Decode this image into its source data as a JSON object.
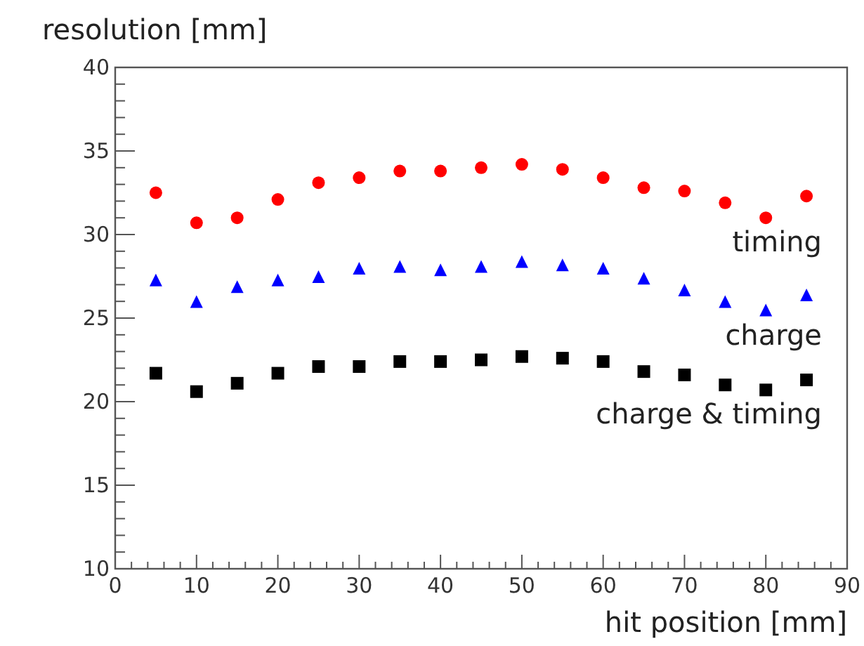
{
  "chart_data": {
    "type": "scatter",
    "xlabel": "hit position [mm]",
    "ylabel": "resolution [mm]",
    "x": [
      5,
      10,
      15,
      20,
      25,
      30,
      35,
      40,
      45,
      50,
      55,
      60,
      65,
      70,
      75,
      80,
      85
    ],
    "series": [
      {
        "name": "timing",
        "color": "#ff0000",
        "marker": "circle",
        "values": [
          32.5,
          30.7,
          31.0,
          32.1,
          33.1,
          33.4,
          33.8,
          33.8,
          34.0,
          34.2,
          33.9,
          33.4,
          32.8,
          32.6,
          31.9,
          31.0,
          32.3
        ]
      },
      {
        "name": "charge",
        "color": "#0000ff",
        "marker": "triangle",
        "values": [
          27.2,
          25.9,
          26.8,
          27.2,
          27.4,
          27.9,
          28.0,
          27.8,
          28.0,
          28.3,
          28.1,
          27.9,
          27.3,
          26.6,
          25.9,
          25.4,
          26.3
        ]
      },
      {
        "name": "charge & timing",
        "color": "#000000",
        "marker": "square",
        "values": [
          21.7,
          20.6,
          21.1,
          21.7,
          22.1,
          22.1,
          22.4,
          22.4,
          22.5,
          22.7,
          22.6,
          22.4,
          21.8,
          21.6,
          21.0,
          20.7,
          21.3
        ]
      }
    ],
    "xlim": [
      0,
      90
    ],
    "ylim": [
      10,
      40
    ],
    "xticks": [
      0,
      {
        "value": 2,
        "label": null
      },
      {
        "value": 4,
        "label": null
      },
      {
        "value": 6,
        "label": null
      },
      {
        "value": 8,
        "label": null
      },
      10,
      {
        "value": 12,
        "label": null
      },
      {
        "value": 14,
        "label": null
      },
      {
        "value": 16,
        "label": null
      },
      {
        "value": 18,
        "label": null
      },
      20,
      {
        "value": 22,
        "label": null
      },
      {
        "value": 24,
        "label": null
      },
      {
        "value": 26,
        "label": null
      },
      {
        "value": 28,
        "label": null
      },
      30,
      {
        "value": 32,
        "label": null
      },
      {
        "value": 34,
        "label": null
      },
      {
        "value": 36,
        "label": null
      },
      {
        "value": 38,
        "label": null
      },
      40,
      {
        "value": 42,
        "label": null
      },
      {
        "value": 44,
        "label": null
      },
      {
        "value": 46,
        "label": null
      },
      {
        "value": 48,
        "label": null
      },
      50,
      {
        "value": 52,
        "label": null
      },
      {
        "value": 54,
        "label": null
      },
      {
        "value": 56,
        "label": null
      },
      {
        "value": 58,
        "label": null
      },
      60,
      {
        "value": 62,
        "label": null
      },
      {
        "value": 64,
        "label": null
      },
      {
        "value": 66,
        "label": null
      },
      {
        "value": 68,
        "label": null
      },
      70,
      {
        "value": 72,
        "label": null
      },
      {
        "value": 74,
        "label": null
      },
      {
        "value": 76,
        "label": null
      },
      {
        "value": 78,
        "label": null
      },
      80,
      {
        "value": 82,
        "label": null
      },
      {
        "value": 84,
        "label": null
      },
      {
        "value": 86,
        "label": null
      },
      {
        "value": 88,
        "label": null
      },
      90
    ],
    "yticks": [
      10,
      {
        "value": 11,
        "label": null
      },
      {
        "value": 12,
        "label": null
      },
      {
        "value": 13,
        "label": null
      },
      {
        "value": 14,
        "label": null
      },
      15,
      {
        "value": 16,
        "label": null
      },
      {
        "value": 17,
        "label": null
      },
      {
        "value": 18,
        "label": null
      },
      {
        "value": 19,
        "label": null
      },
      20,
      {
        "value": 21,
        "label": null
      },
      {
        "value": 22,
        "label": null
      },
      {
        "value": 23,
        "label": null
      },
      {
        "value": 24,
        "label": null
      },
      25,
      {
        "value": 26,
        "label": null
      },
      {
        "value": 27,
        "label": null
      },
      {
        "value": 28,
        "label": null
      },
      {
        "value": 29,
        "label": null
      },
      30,
      {
        "value": 31,
        "label": null
      },
      {
        "value": 32,
        "label": null
      },
      {
        "value": 33,
        "label": null
      },
      {
        "value": 34,
        "label": null
      },
      35,
      {
        "value": 36,
        "label": null
      },
      {
        "value": 37,
        "label": null
      },
      {
        "value": 38,
        "label": null
      },
      {
        "value": 39,
        "label": null
      },
      40
    ],
    "grid": false
  }
}
